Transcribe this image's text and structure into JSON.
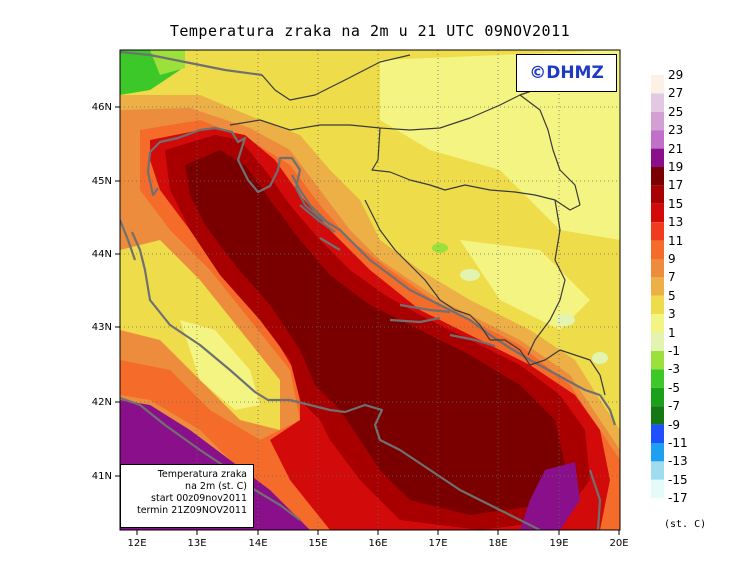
{
  "title": "Temperatura zraka na 2m u 21 UTC 09NOV2011",
  "copyright": "©DHMZ",
  "info_box": {
    "line1": "Temperatura zraka",
    "line2": "na 2m (st. C)",
    "line3": "start 00z09nov2011",
    "line4": "termin 21Z09NOV2011"
  },
  "axes": {
    "lon_ticks": [
      "12E",
      "13E",
      "14E",
      "15E",
      "16E",
      "17E",
      "18E",
      "19E",
      "20E"
    ],
    "lat_ticks": [
      "46N",
      "45N",
      "44N",
      "43N",
      "42N",
      "41N"
    ]
  },
  "legend": {
    "units": "(st. C)",
    "entries": [
      {
        "label": "29",
        "color": "#fdf0e6"
      },
      {
        "label": "27",
        "color": "#e3c8e3"
      },
      {
        "label": "25",
        "color": "#d3a0d3"
      },
      {
        "label": "23",
        "color": "#c070c8"
      },
      {
        "label": "21",
        "color": "#8a0f8a"
      },
      {
        "label": "19",
        "color": "#7a0000"
      },
      {
        "label": "17",
        "color": "#a80000"
      },
      {
        "label": "15",
        "color": "#d20a0a"
      },
      {
        "label": "13",
        "color": "#f03c1e"
      },
      {
        "label": "11",
        "color": "#f56b2a"
      },
      {
        "label": "9",
        "color": "#ec8c3c"
      },
      {
        "label": "7",
        "color": "#ecb046"
      },
      {
        "label": "5",
        "color": "#eedc4a"
      },
      {
        "label": "3",
        "color": "#f4f482"
      },
      {
        "label": "1",
        "color": "#e2f4b0"
      },
      {
        "label": "-1",
        "color": "#9ce03c"
      },
      {
        "label": "-3",
        "color": "#3cc828"
      },
      {
        "label": "-5",
        "color": "#1aa01a"
      },
      {
        "label": "-7",
        "color": "#147814"
      },
      {
        "label": "-9",
        "color": "#1e50ff"
      },
      {
        "label": "-11",
        "color": "#1ea0f0"
      },
      {
        "label": "-13",
        "color": "#a0dcf0"
      },
      {
        "label": "-15",
        "color": "#e6fafa"
      },
      {
        "label": "-17",
        "color": "#ffffff"
      }
    ]
  }
}
